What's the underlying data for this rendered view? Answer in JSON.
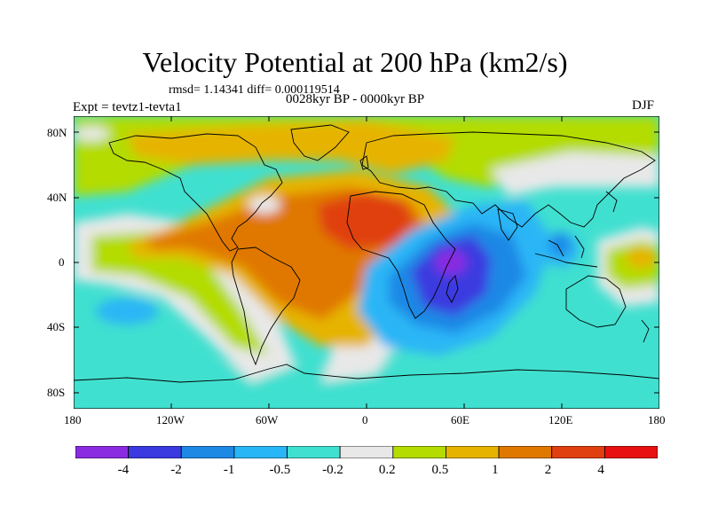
{
  "title": "Velocity Potential at 200 hPa (km2/s)",
  "stats": "rmsd= 1.14341 diff= 0.000119514",
  "experiment": "Expt = tevtz1-tevta1",
  "period": "0028kyr BP - 0000kyr BP",
  "season": "DJF",
  "lat_labels": [
    "80N",
    "40N",
    "0",
    "40S",
    "80S"
  ],
  "lon_labels": [
    "180",
    "120W",
    "60W",
    "0",
    "60E",
    "120E",
    "180"
  ],
  "colorbar": {
    "labels": [
      "-4",
      "-2",
      "-1",
      "-0.5",
      "-0.2",
      "0.2",
      "0.5",
      "1",
      "2",
      "4"
    ],
    "colors": [
      "#8a2be2",
      "#3a3ae0",
      "#1e88e5",
      "#29b6f6",
      "#40e0d0",
      "#e8e8e8",
      "#b4dc00",
      "#e6b400",
      "#e07800",
      "#e04010",
      "#e81010"
    ]
  },
  "field_colors": {
    "strong_negative": "#8a2be2",
    "negative_2": "#3a3ae0",
    "negative_1": "#1e88e5",
    "negative_05": "#29b6f6",
    "negative_02": "#40e0d0",
    "neutral": "#e8e8e8",
    "positive_02": "#b4dc00",
    "positive_05": "#e6b400",
    "positive_1": "#e07800",
    "positive_2": "#e04010"
  }
}
